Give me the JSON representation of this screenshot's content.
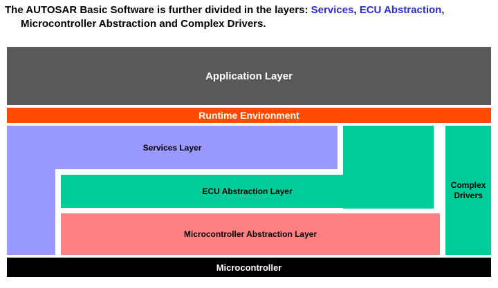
{
  "title": {
    "lines": [
      [
        {
          "text": "The AUTOSAR Basic Software is further divided in the layers: ",
          "color": "#000000"
        },
        {
          "text": "Services",
          "color": "#2B2BD6"
        },
        {
          "text": ", ",
          "color": "#000000"
        },
        {
          "text": "ECU Abstraction,",
          "color": "#2B2BD6"
        }
      ],
      [
        {
          "text": "Microcontroller Abstraction and Complex Drivers.",
          "color": "#000000"
        }
      ]
    ]
  },
  "layers": {
    "application": {
      "label": "Application Layer",
      "bg": "#595959",
      "fg": "#FFFFFF"
    },
    "rte": {
      "label": "Runtime Environment",
      "bg": "#FF4A00",
      "fg": "#FFFFFF"
    },
    "services": {
      "label": "Services Layer",
      "bg": "#9999FF",
      "fg": "#000000"
    },
    "ecu_abstraction": {
      "label": "ECU Abstraction Layer",
      "bg": "#00CC99",
      "fg": "#000000"
    },
    "mcal": {
      "label": "Microcontroller Abstraction Layer",
      "bg": "#FF8080",
      "fg": "#000000"
    },
    "complex_drivers": {
      "label": "Complex Drivers",
      "bg": "#00CC99",
      "fg": "#000000"
    },
    "microcontroller": {
      "label": "Microcontroller",
      "bg": "#000000",
      "fg": "#FFFFFF"
    }
  }
}
